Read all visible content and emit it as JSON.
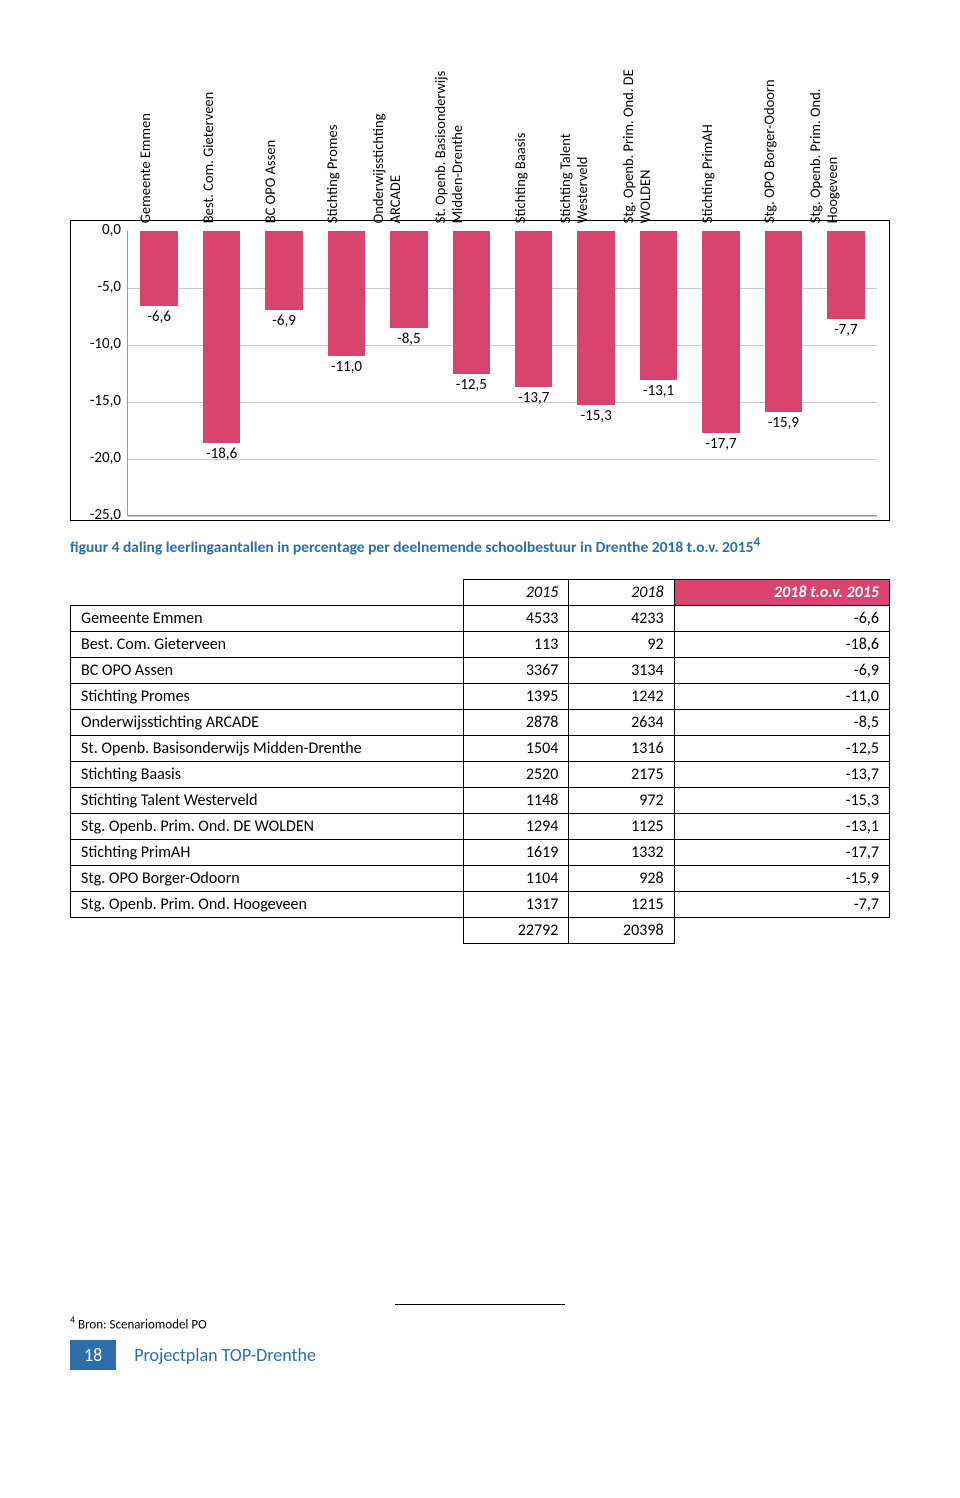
{
  "chart": {
    "type": "bar",
    "ylim": [
      -25,
      0
    ],
    "ytick_step": 5,
    "ytick_labels": [
      "0,0",
      "-5,0",
      "-10,0",
      "-15,0",
      "-20,0",
      "-25,0"
    ],
    "grid_color": "#c9c9c9",
    "bar_color": "#d9446f",
    "bar_width": 0.6,
    "label_fontsize": 14.5,
    "value_fontsize": 15,
    "categories": [
      "Gemeente Emmen",
      "Best. Com. Gieterveen",
      "BC OPO Assen",
      "Stichting Promes",
      "Onderwijsstichting\nARCADE",
      "St. Openb. Basisonderwijs\nMidden-Drenthe",
      "Stichting Baasis",
      "Stichting Talent\nWesterveld",
      "Stg. Openb. Prim. Ond. DE\nWOLDEN",
      "Stichting PrimAH",
      "Stg. OPO Borger-Odoorn",
      "Stg. Openb. Prim. Ond.\nHoogeveen"
    ],
    "values": [
      -6.6,
      -18.6,
      -6.9,
      -11.0,
      -8.5,
      -12.5,
      -13.7,
      -15.3,
      -13.1,
      -17.7,
      -15.9,
      -7.7
    ],
    "value_labels": [
      "-6,6",
      "-18,6",
      "-6,9",
      "-11,0",
      "-8,5",
      "-12,5",
      "-13,7",
      "-15,3",
      "-13,1",
      "-17,7",
      "-15,9",
      "-7,7"
    ]
  },
  "caption": {
    "text": "figuur 4  daling leerlingaantallen in percentage per deelnemende schoolbestuur  in Drenthe 2018 t.o.v. 2015",
    "color": "#2e6fa9",
    "footnoteMark": "4"
  },
  "table": {
    "columns": [
      "2015",
      "2018",
      "2018 t.o.v. 2015"
    ],
    "highlightCol": 2,
    "highlightBg": "#d9446f",
    "rows": [
      {
        "label": "Gemeente Emmen",
        "cells": [
          "4533",
          "4233",
          "-6,6"
        ]
      },
      {
        "label": "Best. Com.  Gieterveen",
        "cells": [
          "113",
          "92",
          "-18,6"
        ]
      },
      {
        "label": "BC OPO Assen",
        "cells": [
          "3367",
          "3134",
          "-6,9"
        ]
      },
      {
        "label": "Stichting Promes",
        "cells": [
          "1395",
          "1242",
          "-11,0"
        ]
      },
      {
        "label": "Onderwijsstichting ARCADE",
        "cells": [
          "2878",
          "2634",
          "-8,5"
        ]
      },
      {
        "label": "St. Openb. Basisonderwijs Midden-Drenthe",
        "cells": [
          "1504",
          "1316",
          "-12,5"
        ]
      },
      {
        "label": "Stichting Baasis",
        "cells": [
          "2520",
          "2175",
          "-13,7"
        ]
      },
      {
        "label": "Stichting Talent Westerveld",
        "cells": [
          "1148",
          "972",
          "-15,3"
        ]
      },
      {
        "label": "Stg. Openb. Prim. Ond. DE WOLDEN",
        "cells": [
          "1294",
          "1125",
          "-13,1"
        ]
      },
      {
        "label": "Stichting PrimAH",
        "cells": [
          "1619",
          "1332",
          "-17,7"
        ]
      },
      {
        "label": "Stg. OPO Borger-Odoorn",
        "cells": [
          "1104",
          "928",
          "-15,9"
        ]
      },
      {
        "label": "Stg. Openb. Prim. Ond. Hoogeveen",
        "cells": [
          "1317",
          "1215",
          "-7,7"
        ]
      }
    ],
    "totals": [
      "22792",
      "20398"
    ]
  },
  "footnote": {
    "mark": "4",
    "text": "Bron: Scenariomodel PO"
  },
  "footer": {
    "pageNumber": "18",
    "title": "Projectplan TOP-Drenthe",
    "accent": "#2e6fa9"
  }
}
